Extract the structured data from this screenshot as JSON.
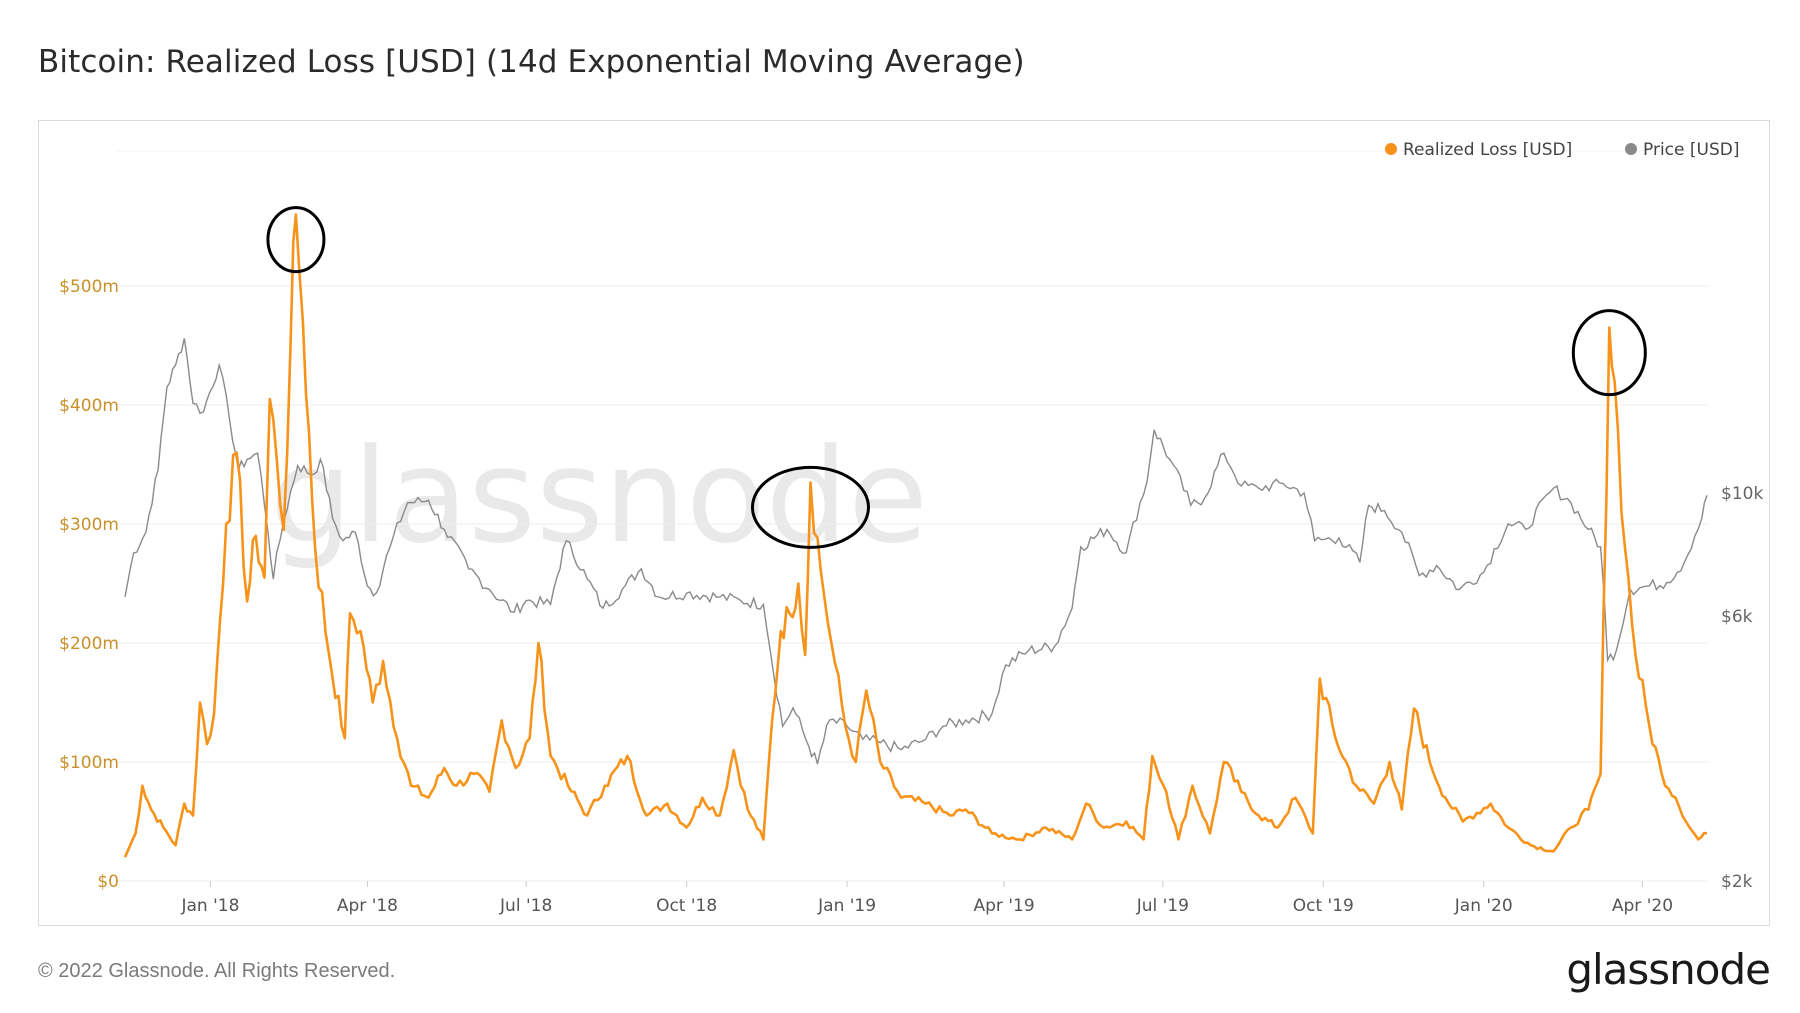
{
  "page": {
    "title": "Bitcoin: Realized Loss [USD] (14d Exponential Moving Average)",
    "copyright": "© 2022 Glassnode. All Rights Reserved.",
    "logo": "glassnode",
    "watermark": "glassnode"
  },
  "chart_data": {
    "type": "line",
    "title": "Bitcoin: Realized Loss [USD] (14d Exponential Moving Average)",
    "legend_position": "top-right",
    "grid": true,
    "x_ticks": [
      "Jan '18",
      "Apr '18",
      "Jul '18",
      "Oct '18",
      "Jan '19",
      "Apr '19",
      "Jul '19",
      "Oct '19",
      "Jan '20",
      "Apr '20"
    ],
    "x_range": [
      "2017-11-13",
      "2020-05-08"
    ],
    "y_left": {
      "ticks": [
        "$0",
        "$100m",
        "$200m",
        "$300m",
        "$400m",
        "$500m"
      ],
      "range_millions": [
        0,
        600
      ]
    },
    "y_right": {
      "ticks": [
        "$2k",
        "$6k",
        "$10k"
      ],
      "scale": "log",
      "range": [
        2000,
        20000
      ]
    },
    "series": [
      {
        "name": "Realized Loss [USD]",
        "color": "#f7931a",
        "axis": "left",
        "points": [
          [
            "2017-11-13",
            20
          ],
          [
            "2017-11-19",
            40
          ],
          [
            "2017-11-23",
            80
          ],
          [
            "2017-11-28",
            60
          ],
          [
            "2017-12-05",
            45
          ],
          [
            "2017-12-12",
            30
          ],
          [
            "2017-12-17",
            65
          ],
          [
            "2017-12-22",
            55
          ],
          [
            "2017-12-26",
            150
          ],
          [
            "2017-12-30",
            115
          ],
          [
            "2018-01-03",
            140
          ],
          [
            "2018-01-10",
            300
          ],
          [
            "2018-01-16",
            360
          ],
          [
            "2018-01-22",
            235
          ],
          [
            "2018-01-27",
            290
          ],
          [
            "2018-02-01",
            255
          ],
          [
            "2018-02-04",
            405
          ],
          [
            "2018-02-08",
            355
          ],
          [
            "2018-02-12",
            295
          ],
          [
            "2018-02-16",
            455
          ],
          [
            "2018-02-19",
            560
          ],
          [
            "2018-02-23",
            470
          ],
          [
            "2018-03-02",
            280
          ],
          [
            "2018-03-10",
            190
          ],
          [
            "2018-03-19",
            120
          ],
          [
            "2018-03-22",
            225
          ],
          [
            "2018-03-28",
            210
          ],
          [
            "2018-04-04",
            150
          ],
          [
            "2018-04-10",
            185
          ],
          [
            "2018-04-18",
            120
          ],
          [
            "2018-04-26",
            80
          ],
          [
            "2018-05-06",
            70
          ],
          [
            "2018-05-15",
            95
          ],
          [
            "2018-05-22",
            80
          ],
          [
            "2018-06-01",
            90
          ],
          [
            "2018-06-10",
            75
          ],
          [
            "2018-06-17",
            135
          ],
          [
            "2018-06-25",
            95
          ],
          [
            "2018-07-03",
            120
          ],
          [
            "2018-07-08",
            200
          ],
          [
            "2018-07-15",
            105
          ],
          [
            "2018-07-25",
            80
          ],
          [
            "2018-08-05",
            55
          ],
          [
            "2018-08-15",
            80
          ],
          [
            "2018-08-28",
            105
          ],
          [
            "2018-09-08",
            55
          ],
          [
            "2018-09-20",
            65
          ],
          [
            "2018-10-01",
            45
          ],
          [
            "2018-10-10",
            70
          ],
          [
            "2018-10-20",
            55
          ],
          [
            "2018-10-28",
            110
          ],
          [
            "2018-11-05",
            60
          ],
          [
            "2018-11-14",
            35
          ],
          [
            "2018-11-19",
            135
          ],
          [
            "2018-11-24",
            210
          ],
          [
            "2018-11-29",
            225
          ],
          [
            "2018-12-04",
            250
          ],
          [
            "2018-12-08",
            190
          ],
          [
            "2018-12-11",
            335
          ],
          [
            "2018-12-17",
            260
          ],
          [
            "2018-12-23",
            200
          ],
          [
            "2018-12-31",
            130
          ],
          [
            "2019-01-06",
            100
          ],
          [
            "2019-01-12",
            160
          ],
          [
            "2019-01-20",
            100
          ],
          [
            "2019-02-01",
            70
          ],
          [
            "2019-02-15",
            65
          ],
          [
            "2019-03-01",
            55
          ],
          [
            "2019-03-10",
            60
          ],
          [
            "2019-03-25",
            40
          ],
          [
            "2019-04-10",
            35
          ],
          [
            "2019-04-25",
            45
          ],
          [
            "2019-05-10",
            35
          ],
          [
            "2019-05-18",
            65
          ],
          [
            "2019-05-28",
            45
          ],
          [
            "2019-06-10",
            50
          ],
          [
            "2019-06-20",
            35
          ],
          [
            "2019-06-25",
            105
          ],
          [
            "2019-07-03",
            75
          ],
          [
            "2019-07-10",
            35
          ],
          [
            "2019-07-18",
            80
          ],
          [
            "2019-07-28",
            40
          ],
          [
            "2019-08-05",
            100
          ],
          [
            "2019-08-15",
            75
          ],
          [
            "2019-08-25",
            55
          ],
          [
            "2019-09-05",
            45
          ],
          [
            "2019-09-15",
            70
          ],
          [
            "2019-09-25",
            40
          ],
          [
            "2019-09-29",
            170
          ],
          [
            "2019-10-08",
            120
          ],
          [
            "2019-10-20",
            80
          ],
          [
            "2019-10-30",
            65
          ],
          [
            "2019-11-08",
            100
          ],
          [
            "2019-11-15",
            60
          ],
          [
            "2019-11-22",
            145
          ],
          [
            "2019-12-01",
            100
          ],
          [
            "2019-12-10",
            70
          ],
          [
            "2019-12-20",
            50
          ],
          [
            "2020-01-05",
            65
          ],
          [
            "2020-01-15",
            45
          ],
          [
            "2020-01-28",
            30
          ],
          [
            "2020-02-10",
            25
          ],
          [
            "2020-02-20",
            45
          ],
          [
            "2020-03-01",
            60
          ],
          [
            "2020-03-08",
            90
          ],
          [
            "2020-03-13",
            465
          ],
          [
            "2020-03-16",
            420
          ],
          [
            "2020-03-22",
            280
          ],
          [
            "2020-03-28",
            190
          ],
          [
            "2020-04-05",
            130
          ],
          [
            "2020-04-12",
            90
          ],
          [
            "2020-04-20",
            70
          ],
          [
            "2020-04-28",
            45
          ],
          [
            "2020-05-03",
            35
          ],
          [
            "2020-05-08",
            40
          ]
        ]
      },
      {
        "name": "Price [USD]",
        "color": "#8a8a8a",
        "axis": "right",
        "points": [
          [
            "2017-11-13",
            6500
          ],
          [
            "2017-11-18",
            7800
          ],
          [
            "2017-11-25",
            8500
          ],
          [
            "2017-12-02",
            11000
          ],
          [
            "2017-12-07",
            15500
          ],
          [
            "2017-12-12",
            17000
          ],
          [
            "2017-12-17",
            19000
          ],
          [
            "2017-12-22",
            14500
          ],
          [
            "2017-12-28",
            14000
          ],
          [
            "2018-01-06",
            17000
          ],
          [
            "2018-01-12",
            13500
          ],
          [
            "2018-01-17",
            11000
          ],
          [
            "2018-01-22",
            11500
          ],
          [
            "2018-01-28",
            11800
          ],
          [
            "2018-02-03",
            8500
          ],
          [
            "2018-02-06",
            7000
          ],
          [
            "2018-02-12",
            8900
          ],
          [
            "2018-02-20",
            11200
          ],
          [
            "2018-03-01",
            10800
          ],
          [
            "2018-03-05",
            11500
          ],
          [
            "2018-03-12",
            9000
          ],
          [
            "2018-03-18",
            8200
          ],
          [
            "2018-03-25",
            8500
          ],
          [
            "2018-04-01",
            6800
          ],
          [
            "2018-04-06",
            6600
          ],
          [
            "2018-04-14",
            8000
          ],
          [
            "2018-04-24",
            9600
          ],
          [
            "2018-05-06",
            9700
          ],
          [
            "2018-05-15",
            8600
          ],
          [
            "2018-05-29",
            7300
          ],
          [
            "2018-06-10",
            6700
          ],
          [
            "2018-06-24",
            6100
          ],
          [
            "2018-07-01",
            6400
          ],
          [
            "2018-07-15",
            6300
          ],
          [
            "2018-07-24",
            8200
          ],
          [
            "2018-08-05",
            7000
          ],
          [
            "2018-08-14",
            6200
          ],
          [
            "2018-08-25",
            6700
          ],
          [
            "2018-09-05",
            7300
          ],
          [
            "2018-09-15",
            6500
          ],
          [
            "2018-10-01",
            6600
          ],
          [
            "2018-10-20",
            6500
          ],
          [
            "2018-11-01",
            6400
          ],
          [
            "2018-11-14",
            6300
          ],
          [
            "2018-11-20",
            4700
          ],
          [
            "2018-11-25",
            3800
          ],
          [
            "2018-12-01",
            4100
          ],
          [
            "2018-12-10",
            3500
          ],
          [
            "2018-12-15",
            3250
          ],
          [
            "2018-12-22",
            3900
          ],
          [
            "2019-01-01",
            3800
          ],
          [
            "2019-01-10",
            3600
          ],
          [
            "2019-01-20",
            3550
          ],
          [
            "2019-02-01",
            3450
          ],
          [
            "2019-02-15",
            3600
          ],
          [
            "2019-02-25",
            3800
          ],
          [
            "2019-03-10",
            3900
          ],
          [
            "2019-03-25",
            4000
          ],
          [
            "2019-04-02",
            4900
          ],
          [
            "2019-04-15",
            5200
          ],
          [
            "2019-04-30",
            5300
          ],
          [
            "2019-05-10",
            6200
          ],
          [
            "2019-05-15",
            8000
          ],
          [
            "2019-05-30",
            8600
          ],
          [
            "2019-06-10",
            7800
          ],
          [
            "2019-06-22",
            10500
          ],
          [
            "2019-06-26",
            13000
          ],
          [
            "2019-07-05",
            11500
          ],
          [
            "2019-07-17",
            9500
          ],
          [
            "2019-07-25",
            9800
          ],
          [
            "2019-08-05",
            11800
          ],
          [
            "2019-08-15",
            10300
          ],
          [
            "2019-08-25",
            10200
          ],
          [
            "2019-09-08",
            10400
          ],
          [
            "2019-09-20",
            10000
          ],
          [
            "2019-09-26",
            8200
          ],
          [
            "2019-10-10",
            8300
          ],
          [
            "2019-10-22",
            7500
          ],
          [
            "2019-10-27",
            9500
          ],
          [
            "2019-11-05",
            9300
          ],
          [
            "2019-11-15",
            8500
          ],
          [
            "2019-11-25",
            7100
          ],
          [
            "2019-12-05",
            7400
          ],
          [
            "2019-12-18",
            6700
          ],
          [
            "2020-01-01",
            7200
          ],
          [
            "2020-01-15",
            8800
          ],
          [
            "2020-01-25",
            8600
          ],
          [
            "2020-02-10",
            10200
          ],
          [
            "2020-02-20",
            9600
          ],
          [
            "2020-03-01",
            8600
          ],
          [
            "2020-03-08",
            8000
          ],
          [
            "2020-03-12",
            5000
          ],
          [
            "2020-03-17",
            5200
          ],
          [
            "2020-03-25",
            6700
          ],
          [
            "2020-04-05",
            6800
          ],
          [
            "2020-04-15",
            6900
          ],
          [
            "2020-04-25",
            7500
          ],
          [
            "2020-05-05",
            9000
          ],
          [
            "2020-05-08",
            9900
          ]
        ]
      }
    ],
    "annotations": [
      "circle around Feb '18 peak",
      "circle around Dec '18 peak",
      "circle around Mar '20 peak"
    ]
  }
}
